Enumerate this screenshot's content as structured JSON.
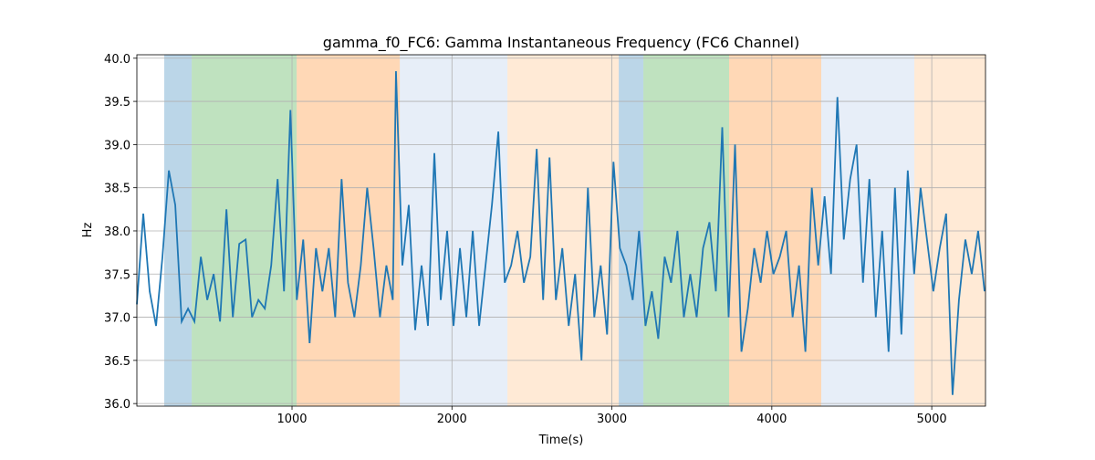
{
  "chart_data": {
    "type": "line",
    "title": "gamma_f0_FC6: Gamma Instantaneous Frequency (FC6 Channel)",
    "xlabel": "Time(s)",
    "ylabel": "Hz",
    "xlim": [
      30,
      5336
    ],
    "ylim": [
      35.97,
      40.04
    ],
    "xticks": [
      1000,
      2000,
      3000,
      4000,
      5000
    ],
    "yticks": [
      {
        "value": 36,
        "label": "36.0"
      },
      36.5,
      {
        "value": 37,
        "label": "37.0"
      },
      37.5,
      {
        "value": 38,
        "label": "38.0"
      },
      38.5,
      {
        "value": 39,
        "label": "39.0"
      },
      39.5,
      {
        "value": 40,
        "label": "40.0"
      }
    ],
    "grid": true,
    "spans": [
      {
        "start": 201,
        "end": 373,
        "color": "#1f77b4"
      },
      {
        "start": 373,
        "end": 1029,
        "color": "#2ca02c"
      },
      {
        "start": 1029,
        "end": 1674,
        "color": "#ff7f0e"
      },
      {
        "start": 1674,
        "end": 2347,
        "color": "#aec7e8"
      },
      {
        "start": 2347,
        "end": 3043,
        "color": "#ffbb78"
      },
      {
        "start": 3043,
        "end": 3197,
        "color": "#1f77b4"
      },
      {
        "start": 3197,
        "end": 3733,
        "color": "#2ca02c"
      },
      {
        "start": 3733,
        "end": 4309,
        "color": "#ff7f0e"
      },
      {
        "start": 4309,
        "end": 4891,
        "color": "#aec7e8"
      },
      {
        "start": 4891,
        "end": 5336,
        "color": "#ffbb78"
      }
    ],
    "x": [
      30,
      70,
      110,
      150,
      190,
      230,
      270,
      310,
      350,
      390,
      430,
      470,
      510,
      550,
      590,
      630,
      670,
      710,
      750,
      790,
      830,
      870,
      910,
      950,
      990,
      1030,
      1070,
      1110,
      1150,
      1190,
      1230,
      1270,
      1310,
      1350,
      1390,
      1430,
      1470,
      1510,
      1550,
      1590,
      1630,
      1650,
      1690,
      1730,
      1770,
      1810,
      1850,
      1890,
      1930,
      1970,
      2010,
      2050,
      2090,
      2130,
      2170,
      2210,
      2250,
      2290,
      2330,
      2370,
      2410,
      2450,
      2490,
      2530,
      2570,
      2610,
      2650,
      2690,
      2730,
      2770,
      2810,
      2850,
      2890,
      2930,
      2970,
      3010,
      3050,
      3090,
      3130,
      3170,
      3210,
      3250,
      3290,
      3330,
      3370,
      3410,
      3450,
      3490,
      3530,
      3570,
      3610,
      3650,
      3690,
      3730,
      3770,
      3810,
      3850,
      3890,
      3930,
      3970,
      4010,
      4050,
      4090,
      4130,
      4170,
      4210,
      4250,
      4290,
      4330,
      4370,
      4410,
      4450,
      4490,
      4530,
      4570,
      4610,
      4650,
      4690,
      4730,
      4770,
      4810,
      4850,
      4890,
      4930,
      4970,
      5010,
      5050,
      5090,
      5130,
      5170,
      5210,
      5250,
      5290,
      5330
    ],
    "series": [
      {
        "color": "#1f77b4",
        "values": [
          37.15,
          38.2,
          37.3,
          36.9,
          37.7,
          38.7,
          38.3,
          36.95,
          37.1,
          36.95,
          37.7,
          37.2,
          37.5,
          36.95,
          38.25,
          37.0,
          37.85,
          37.9,
          37.0,
          37.2,
          37.1,
          37.6,
          38.6,
          37.3,
          39.4,
          37.2,
          37.9,
          36.7,
          37.8,
          37.3,
          37.8,
          37.0,
          38.6,
          37.4,
          37.0,
          37.6,
          38.5,
          37.8,
          37.0,
          37.6,
          37.2,
          39.85,
          37.6,
          38.3,
          36.85,
          37.6,
          36.9,
          38.9,
          37.2,
          38.0,
          36.9,
          37.8,
          37.0,
          38.0,
          36.9,
          37.6,
          38.3,
          39.15,
          37.4,
          37.6,
          38.0,
          37.4,
          37.7,
          38.95,
          37.2,
          38.85,
          37.2,
          37.8,
          36.9,
          37.5,
          36.5,
          38.5,
          37.0,
          37.6,
          36.8,
          38.8,
          37.8,
          37.6,
          37.2,
          38.0,
          36.9,
          37.3,
          36.75,
          37.7,
          37.4,
          38.0,
          37.0,
          37.5,
          37.0,
          37.8,
          38.1,
          37.3,
          39.2,
          37.0,
          39.0,
          36.6,
          37.1,
          37.8,
          37.4,
          38.0,
          37.5,
          37.7,
          38.0,
          37.0,
          37.6,
          36.6,
          38.5,
          37.6,
          38.4,
          37.5,
          39.55,
          37.9,
          38.6,
          39.0,
          37.4,
          38.6,
          37.0,
          38.0,
          36.6,
          38.5,
          36.8,
          38.7,
          37.5,
          38.5,
          37.9,
          37.3,
          37.8,
          38.2,
          36.1,
          37.2,
          37.9,
          37.5,
          38.0,
          37.3
        ]
      }
    ]
  }
}
